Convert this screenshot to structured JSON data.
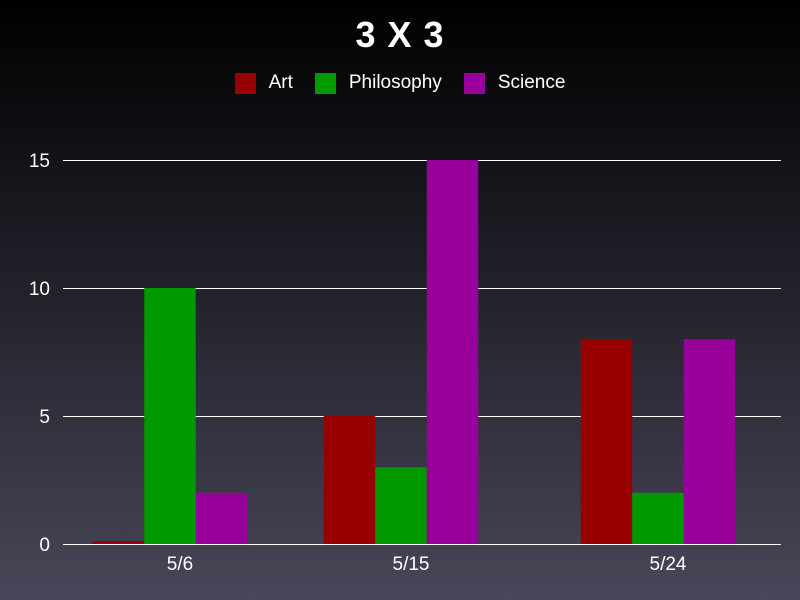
{
  "chart_data": {
    "type": "bar",
    "title": "3 X 3",
    "categories": [
      "5/6",
      "5/15",
      "5/24"
    ],
    "series": [
      {
        "name": "Art",
        "color": "#990000",
        "values": [
          0,
          5,
          8
        ]
      },
      {
        "name": "Philosophy",
        "color": "#009900",
        "values": [
          10,
          3,
          2
        ]
      },
      {
        "name": "Science",
        "color": "#990099",
        "values": [
          2,
          15,
          8
        ]
      }
    ],
    "yticks": [
      0,
      5,
      10,
      15
    ],
    "ylim": [
      0,
      15
    ],
    "grid": true,
    "legend": "top-center",
    "xlabel": "",
    "ylabel": ""
  }
}
